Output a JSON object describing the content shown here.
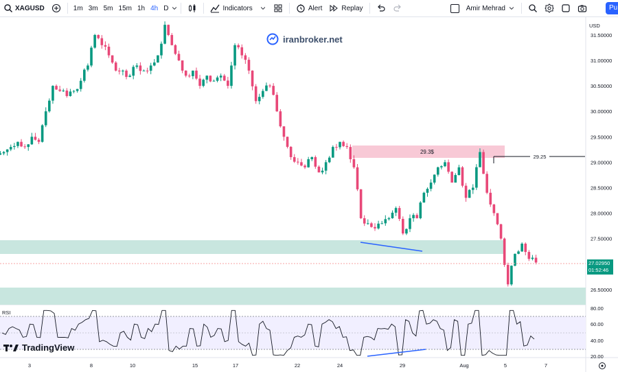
{
  "toolbar": {
    "symbol": "XAGUSD",
    "timeframes": [
      "1m",
      "3m",
      "5m",
      "15m",
      "1h",
      "4h",
      "D"
    ],
    "active_timeframe": "4h",
    "indicators_label": "Indicators",
    "alert_label": "Alert",
    "replay_label": "Replay",
    "user_name": "Amir Mehrad",
    "publish_label": "Pu"
  },
  "watermark": {
    "text": "iranbroker.net"
  },
  "price_axis": {
    "currency": "USD",
    "labels": [
      "31.50000",
      "31.00000",
      "30.50000",
      "30.00000",
      "29.50000",
      "29.00000",
      "28.50000",
      "28.00000",
      "27.50000",
      "27.00000",
      "26.50000"
    ]
  },
  "current_price": {
    "price": "27.02950",
    "countdown": "01:52:46",
    "color": "#089981"
  },
  "annotations": {
    "supply_zone_label": "29.3$",
    "resistance_line_label": "29.25"
  },
  "time_axis": {
    "labels": [
      "3",
      "8",
      "10",
      "15",
      "17",
      "22",
      "24",
      "29",
      "Aug",
      "5",
      "7"
    ]
  },
  "rsi": {
    "label": "RSI",
    "levels": [
      "80.00",
      "60.00",
      "40.00",
      "20.00"
    ]
  },
  "branding": {
    "tradingview": "TradingView"
  },
  "colors": {
    "up": "#089981",
    "down": "#f23645",
    "down_candle": "#e84878",
    "zone_green": "#c8e6df",
    "zone_pink": "#f8c9d6",
    "divergence_line": "#2962ff"
  },
  "chart_data": {
    "type": "candlestick",
    "symbol": "XAGUSD",
    "timeframe": "4h",
    "ylim": [
      26.2,
      31.85
    ],
    "x": [
      "3",
      "8",
      "10",
      "15",
      "17",
      "22",
      "24",
      "29",
      "Aug",
      "5",
      "7"
    ],
    "close_path": [
      29.2,
      29.3,
      29.4,
      29.3,
      29.5,
      29.4,
      30.0,
      30.5,
      30.4,
      30.3,
      30.4,
      30.6,
      30.9,
      31.5,
      31.3,
      31.1,
      30.8,
      30.8,
      30.7,
      30.9,
      30.8,
      30.9,
      31.1,
      31.7,
      31.3,
      31.0,
      30.7,
      30.8,
      30.5,
      30.7,
      30.6,
      30.7,
      30.5,
      31.3,
      31.1,
      30.8,
      30.2,
      30.4,
      30.5,
      30.0,
      29.5,
      29.1,
      29.0,
      28.9,
      29.1,
      28.8,
      29.0,
      29.3,
      29.4,
      29.3,
      28.9,
      27.9,
      27.8,
      27.7,
      27.8,
      27.9,
      28.1,
      27.6,
      27.9,
      27.9,
      28.4,
      28.6,
      28.9,
      29.0,
      28.6,
      28.9,
      28.3,
      28.5,
      29.2,
      28.4,
      28.0,
      27.5,
      26.6,
      27.2,
      27.4,
      27.1,
      27.03
    ],
    "supply_zone": [
      29.22,
      29.47
    ],
    "demand_zones": [
      [
        27.23,
        27.52
      ],
      [
        26.0,
        26.6
      ]
    ],
    "resistance_level": 29.25,
    "rsi_levels": [
      80,
      60,
      40,
      20
    ]
  }
}
